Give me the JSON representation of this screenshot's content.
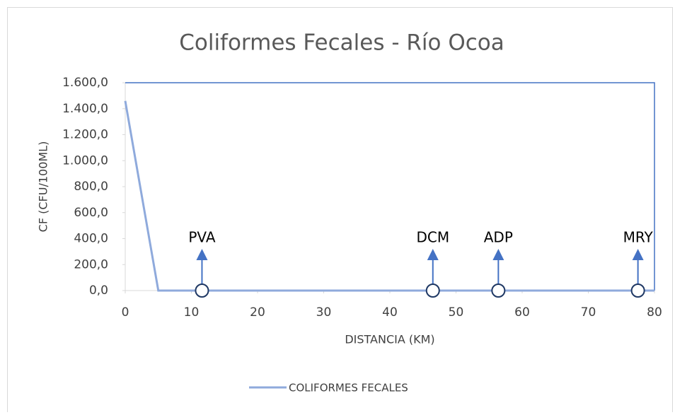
{
  "chart_data": {
    "type": "line",
    "title": "Coliformes Fecales - Río Ocoa",
    "xlabel": "DISTANCIA (KM)",
    "ylabel": "CF (CFU/100ML)",
    "x": [
      0,
      5,
      80
    ],
    "series": [
      {
        "name": "COLIFORMES FECALES",
        "color": "#8faadc",
        "values": [
          1460,
          0,
          0
        ]
      }
    ],
    "xlim": [
      0,
      80
    ],
    "xticks": [
      0,
      10,
      20,
      30,
      40,
      50,
      60,
      70,
      80
    ],
    "ylim": [
      0,
      1600
    ],
    "yticks": [
      {
        "value": 0,
        "label": "0,0"
      },
      {
        "value": 200,
        "label": "200,0"
      },
      {
        "value": 400,
        "label": "400,0"
      },
      {
        "value": 600,
        "label": "600,0"
      },
      {
        "value": 800,
        "label": "800,0"
      },
      {
        "value": 1000,
        "label": "1.000,0"
      },
      {
        "value": 1200,
        "label": "1.200,0"
      },
      {
        "value": 1400,
        "label": "1.400,0"
      },
      {
        "value": 1600,
        "label": "1.600,0"
      }
    ],
    "annotations": [
      {
        "text": "PVA",
        "x": 11.6
      },
      {
        "text": "DCM",
        "x": 46.5
      },
      {
        "text": "ADP",
        "x": 56.4
      },
      {
        "text": "MRY",
        "x": 77.5
      }
    ],
    "legend": "bottom"
  }
}
